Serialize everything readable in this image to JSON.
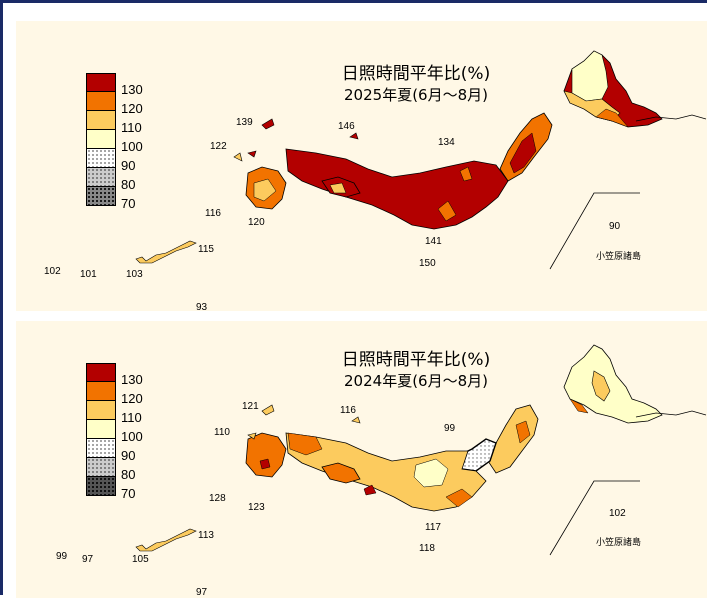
{
  "maps": [
    {
      "title_line1": "日照時間平年比(%)",
      "title_line2": "2025年夏(6月～8月)",
      "legend": [
        {
          "label": "130",
          "color": "#b30000"
        },
        {
          "label": "120",
          "color": "#f27300"
        },
        {
          "label": "110",
          "color": "#fccb5e"
        },
        {
          "label": "100",
          "color": "#ffffc8"
        },
        {
          "label": "90",
          "color": "#ffffff"
        },
        {
          "label": "80",
          "color": "#cccccc"
        },
        {
          "label": "70",
          "color": "#888888"
        }
      ],
      "station_values": {
        "a": "139",
        "b": "146",
        "c": "122",
        "d": "134",
        "e": "116",
        "f": "120",
        "g": "115",
        "h": "102",
        "i": "101",
        "j": "103",
        "k": "141",
        "l": "150",
        "m": "93",
        "n": "90"
      },
      "ogasawara_label": "小笠原諸島"
    },
    {
      "title_line1": "日照時間平年比(%)",
      "title_line2": "2024年夏(6月～8月)",
      "legend": [
        {
          "label": "130",
          "color": "#b30000"
        },
        {
          "label": "120",
          "color": "#f27300"
        },
        {
          "label": "110",
          "color": "#fccb5e"
        },
        {
          "label": "100",
          "color": "#ffffc8"
        },
        {
          "label": "90",
          "color": "#ffffff"
        },
        {
          "label": "80",
          "color": "#cccccc"
        },
        {
          "label": "70",
          "color": "#555555"
        }
      ],
      "station_values": {
        "a": "121",
        "b": "116",
        "c": "110",
        "d": "99",
        "e": "128",
        "f": "123",
        "g": "113",
        "h": "99",
        "i": "97",
        "j": "105",
        "k": "117",
        "l": "118",
        "m": "97",
        "n": "102"
      },
      "ogasawara_label": "小笠原諸島"
    }
  ]
}
